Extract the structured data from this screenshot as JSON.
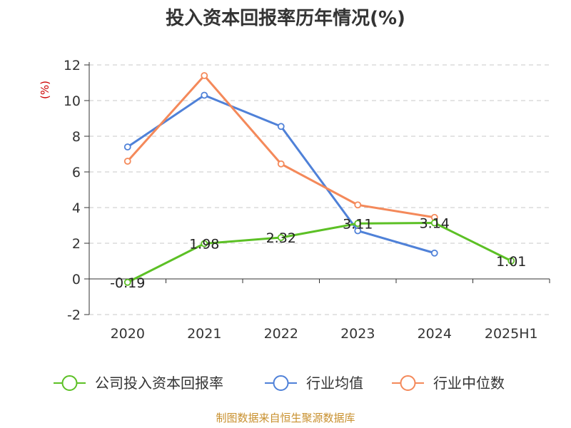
{
  "chart_data": {
    "type": "line",
    "title": "投入资本回报率历年情况(%)",
    "ylabel": "(%)",
    "xlabel": "",
    "categories": [
      "2020",
      "2021",
      "2022",
      "2023",
      "2024",
      "2025H1"
    ],
    "ylim": [
      -2,
      12
    ],
    "yticks": [
      -2,
      0,
      2,
      4,
      6,
      8,
      10,
      12
    ],
    "grid": true,
    "legend_position": "bottom",
    "series": [
      {
        "name": "公司投入资本回报率",
        "color": "#5cc025",
        "values": [
          -0.19,
          1.98,
          2.32,
          3.11,
          3.14,
          1.01
        ],
        "labels": [
          "-0.19",
          "1.98",
          "2.32",
          "3.11",
          "3.14",
          "1.01"
        ]
      },
      {
        "name": "行业均值",
        "color": "#4f81d8",
        "values": [
          7.4,
          10.3,
          8.55,
          2.7,
          1.45,
          null
        ]
      },
      {
        "name": "行业中位数",
        "color": "#f4895a",
        "values": [
          6.6,
          11.4,
          6.45,
          4.15,
          3.45,
          null
        ]
      }
    ]
  },
  "source": "制图数据来自恒生聚源数据库"
}
